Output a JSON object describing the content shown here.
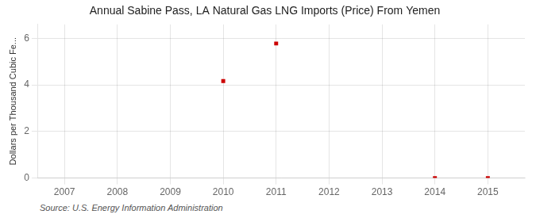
{
  "chart_data": {
    "type": "scatter",
    "title": "Annual Sabine Pass, LA Natural Gas LNG Imports (Price) From Yemen",
    "ylabel": "Dollars per Thousand Cubic Fe...",
    "source": "Source: U.S. Energy Information Administration",
    "x": [
      2010,
      2011,
      2014,
      2015
    ],
    "values": [
      4.17,
      5.78,
      0.0,
      0.0
    ],
    "color": "#CC0000",
    "marker": "square",
    "xlim": [
      2006.5,
      2015.7
    ],
    "xticks": [
      2007,
      2008,
      2009,
      2010,
      2011,
      2012,
      2013,
      2014,
      2015
    ],
    "ylim": [
      0,
      6.6
    ],
    "yticks": [
      0,
      2,
      4,
      6
    ],
    "grid": true
  }
}
